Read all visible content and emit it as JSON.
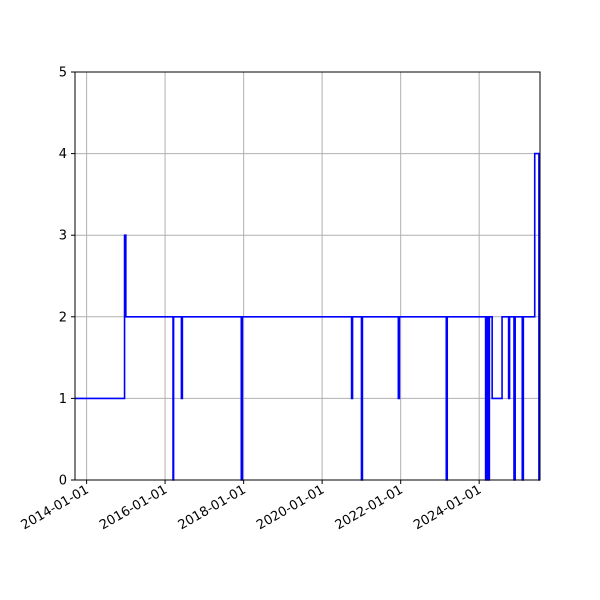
{
  "chart_data": {
    "type": "line",
    "title": "",
    "xlabel": "",
    "ylabel": "",
    "x_tick_labels": [
      "2014-01-01",
      "2016-01-01",
      "2018-01-01",
      "2020-01-01",
      "2022-01-01",
      "2024-01-01"
    ],
    "y_tick_labels": [
      "0",
      "1",
      "2",
      "3",
      "4",
      "5"
    ],
    "xlim": [
      "2013-09-15",
      "2025-07-20"
    ],
    "ylim": [
      0,
      5
    ],
    "grid": true,
    "legend": "none",
    "line_style": "steps-post",
    "series": [
      {
        "color": "#0000ff",
        "points": [
          [
            "2013-09-15",
            1
          ],
          [
            "2014-12-20",
            3
          ],
          [
            "2015-01-01",
            2
          ],
          [
            "2016-03-15",
            0
          ],
          [
            "2016-03-20",
            2
          ],
          [
            "2016-06-01",
            1
          ],
          [
            "2016-06-10",
            2
          ],
          [
            "2017-12-10",
            0
          ],
          [
            "2017-12-20",
            2
          ],
          [
            "2020-10-01",
            1
          ],
          [
            "2020-10-10",
            2
          ],
          [
            "2021-01-01",
            0
          ],
          [
            "2021-01-10",
            2
          ],
          [
            "2021-12-10",
            1
          ],
          [
            "2021-12-20",
            2
          ],
          [
            "2023-03-01",
            0
          ],
          [
            "2023-03-10",
            2
          ],
          [
            "2024-03-01",
            0
          ],
          [
            "2024-03-10",
            2
          ],
          [
            "2024-03-25",
            0
          ],
          [
            "2024-04-05",
            2
          ],
          [
            "2024-05-01",
            1
          ],
          [
            "2024-08-01",
            2
          ],
          [
            "2024-10-01",
            1
          ],
          [
            "2024-10-10",
            2
          ],
          [
            "2024-11-20",
            0
          ],
          [
            "2024-12-01",
            2
          ],
          [
            "2025-02-05",
            0
          ],
          [
            "2025-02-15",
            2
          ],
          [
            "2025-06-01",
            4
          ],
          [
            "2025-07-10",
            0
          ],
          [
            "2025-07-20",
            0
          ]
        ]
      }
    ]
  }
}
